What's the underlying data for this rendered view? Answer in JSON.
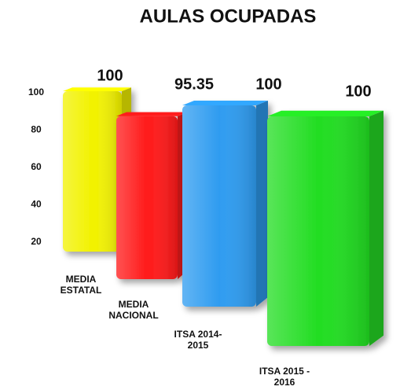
{
  "chart_data": {
    "type": "bar3d",
    "title": "AULAS OCUPADAS",
    "categories": [
      "MEDIA ESTATAL",
      "MEDIA NACIONAL",
      "ITSA 2014-2015",
      "ITSA 2015 - 2016"
    ],
    "values": [
      100,
      95.35,
      100,
      100
    ],
    "colors": [
      "#f2f200",
      "#ff1a1a",
      "#2f9cf0",
      "#22dd22"
    ],
    "ylim": [
      20,
      100
    ],
    "yticks": [
      20,
      40,
      60,
      80,
      100
    ],
    "grid": false
  }
}
